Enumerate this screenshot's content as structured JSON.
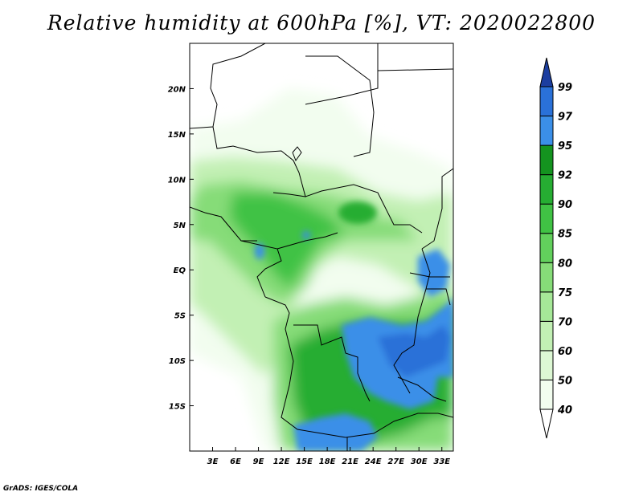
{
  "title": "Relative humidity at 600hPa [%], VT: 2020022800",
  "credit": "GrADS: IGES/COLA",
  "map": {
    "lon_range": [
      0,
      34.5
    ],
    "lat_range": [
      -20,
      25
    ],
    "x_ticks": [
      {
        "lon": 3,
        "label": "3E"
      },
      {
        "lon": 6,
        "label": "6E"
      },
      {
        "lon": 9,
        "label": "9E"
      },
      {
        "lon": 12,
        "label": "12E"
      },
      {
        "lon": 15,
        "label": "15E"
      },
      {
        "lon": 18,
        "label": "18E"
      },
      {
        "lon": 21,
        "label": "21E"
      },
      {
        "lon": 24,
        "label": "24E"
      },
      {
        "lon": 27,
        "label": "27E"
      },
      {
        "lon": 30,
        "label": "30E"
      },
      {
        "lon": 33,
        "label": "33E"
      }
    ],
    "y_ticks": [
      {
        "lat": 20,
        "label": "20N"
      },
      {
        "lat": 15,
        "label": "15N"
      },
      {
        "lat": 10,
        "label": "10N"
      },
      {
        "lat": 5,
        "label": "5N"
      },
      {
        "lat": 0,
        "label": "EQ"
      },
      {
        "lat": -5,
        "label": "5S"
      },
      {
        "lat": -10,
        "label": "10S"
      },
      {
        "lat": -15,
        "label": "15S"
      }
    ]
  },
  "colorbar": {
    "levels": [
      "40",
      "50",
      "60",
      "70",
      "75",
      "80",
      "85",
      "90",
      "92",
      "95",
      "97",
      "99"
    ],
    "colors": [
      "#f2fdef",
      "#ddf8d4",
      "#c2f0b4",
      "#a6e898",
      "#86dc78",
      "#62d05c",
      "#40c244",
      "#26ad32",
      "#14931f",
      "#3b8fe8",
      "#2a71d8",
      "#2458c0",
      "#1c3ea0"
    ]
  }
}
